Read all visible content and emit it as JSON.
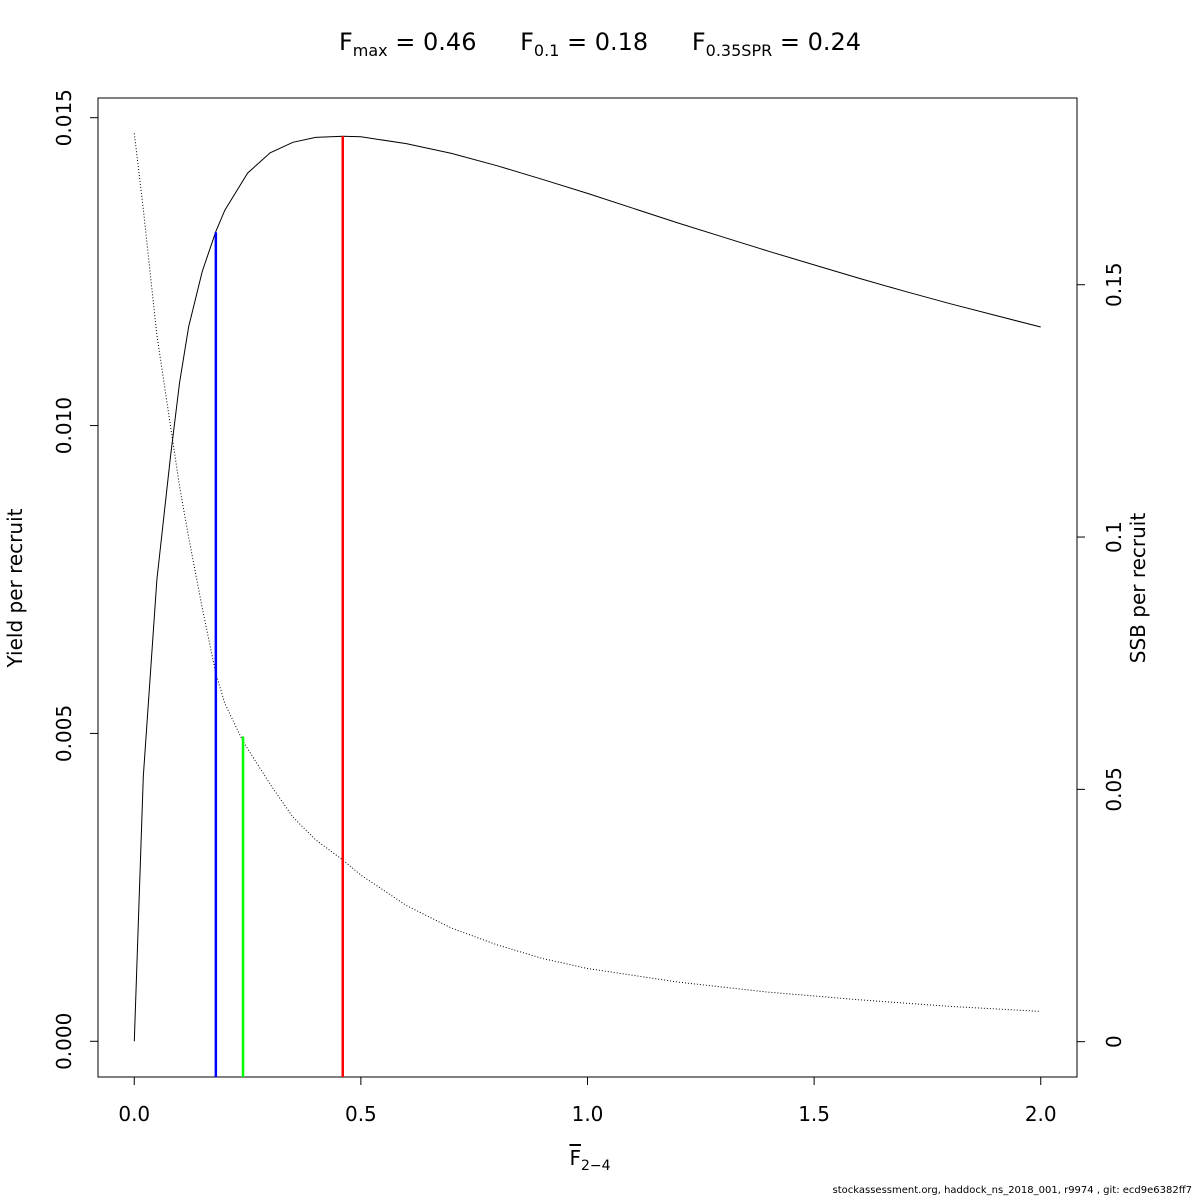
{
  "chart_data": {
    "type": "line",
    "title_terms": [
      {
        "name": "F",
        "sub": "max",
        "value": "= 0.46"
      },
      {
        "name": "F",
        "sub": "0.1",
        "value": "= 0.18"
      },
      {
        "name": "F",
        "sub": "0.35SPR",
        "value": "= 0.24"
      }
    ],
    "xlabel": {
      "main": "F",
      "sub": "2−4"
    },
    "ylabel_left": "Yield per recruit",
    "ylabel_right": "SSB per recruit",
    "xlim": [
      -0.08,
      2.08
    ],
    "ylim_left": [
      -0.00058,
      0.01532
    ],
    "ylim_right": [
      -0.007,
      0.187
    ],
    "x_ticks": [
      {
        "value": 0.0,
        "label": "0.0"
      },
      {
        "value": 0.5,
        "label": "0.5"
      },
      {
        "value": 1.0,
        "label": "1.0"
      },
      {
        "value": 1.5,
        "label": "1.5"
      },
      {
        "value": 2.0,
        "label": "2.0"
      }
    ],
    "y_left_ticks": [
      {
        "value": 0.0,
        "label": "0.000"
      },
      {
        "value": 0.005,
        "label": "0.005"
      },
      {
        "value": 0.01,
        "label": "0.010"
      },
      {
        "value": 0.015,
        "label": "0.015"
      }
    ],
    "y_right_ticks": [
      {
        "value": 0.0,
        "label": "0"
      },
      {
        "value": 0.05,
        "label": "0.05"
      },
      {
        "value": 0.1,
        "label": "0.1"
      },
      {
        "value": 0.15,
        "label": "0.15"
      }
    ],
    "series": [
      {
        "axis": "left",
        "style": "solid",
        "color": "#000000",
        "x": [
          0,
          0.02,
          0.05,
          0.08,
          0.1,
          0.12,
          0.15,
          0.18,
          0.2,
          0.25,
          0.3,
          0.35,
          0.4,
          0.46,
          0.5,
          0.6,
          0.7,
          0.8,
          0.9,
          1.0,
          1.1,
          1.2,
          1.3,
          1.4,
          1.5,
          1.6,
          1.7,
          1.8,
          1.9,
          2.0
        ],
        "y": [
          0.0,
          0.0043,
          0.0075,
          0.0095,
          0.0107,
          0.0116,
          0.0125,
          0.01315,
          0.0135,
          0.0141,
          0.01443,
          0.0146,
          0.01468,
          0.0147,
          0.01469,
          0.01458,
          0.01442,
          0.01422,
          0.014,
          0.01377,
          0.01353,
          0.01329,
          0.01306,
          0.01283,
          0.01261,
          0.01239,
          0.01218,
          0.01198,
          0.01179,
          0.0116
        ]
      },
      {
        "axis": "right",
        "style": "dotted",
        "color": "#000000",
        "x": [
          0,
          0.02,
          0.05,
          0.08,
          0.1,
          0.12,
          0.15,
          0.18,
          0.2,
          0.24,
          0.3,
          0.35,
          0.4,
          0.46,
          0.5,
          0.6,
          0.7,
          0.8,
          0.9,
          1.0,
          1.2,
          1.4,
          1.6,
          1.8,
          2.0
        ],
        "y": [
          0.18,
          0.165,
          0.14,
          0.122,
          0.11,
          0.1,
          0.086,
          0.073,
          0.067,
          0.0595,
          0.051,
          0.0445,
          0.04,
          0.036,
          0.033,
          0.027,
          0.0225,
          0.0192,
          0.0165,
          0.0145,
          0.0118,
          0.0098,
          0.0083,
          0.007,
          0.006
        ]
      }
    ],
    "reference_lines": [
      {
        "x": 0.18,
        "y": 0.01314,
        "color": "#0000ff"
      },
      {
        "x": 0.24,
        "y": 0.00495,
        "color": "#00ff00"
      },
      {
        "x": 0.46,
        "y": 0.0147,
        "color": "#ff0000"
      }
    ]
  },
  "footer": "stockassessment.org, haddock_ns_2018_001, r9974 , git: ecd9e6382ff7"
}
